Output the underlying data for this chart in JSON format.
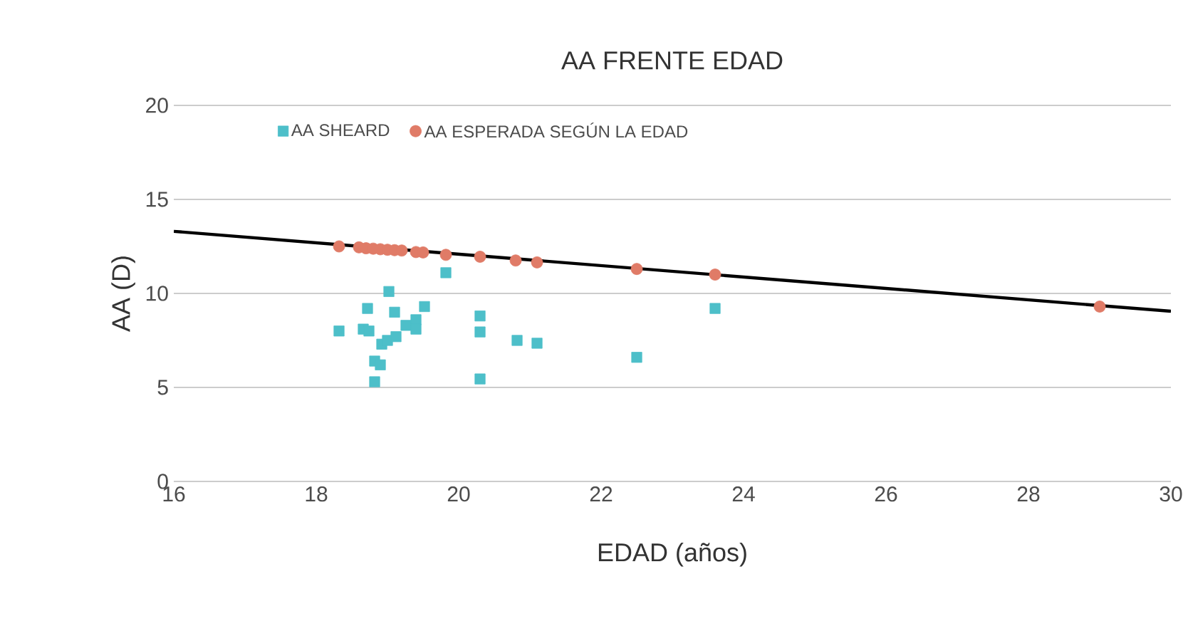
{
  "chart_data": {
    "type": "scatter",
    "title": "AA FRENTE EDAD",
    "xlabel": "EDAD (años)",
    "ylabel": "AA (D)",
    "xlim": [
      16,
      30
    ],
    "xticks": [
      16,
      18,
      20,
      22,
      24,
      26,
      28,
      30
    ],
    "ylim": [
      0,
      20
    ],
    "yticks": [
      0,
      5,
      10,
      15,
      20
    ],
    "grid": "y",
    "legend": "top left",
    "series": [
      {
        "name": "AA SHEARD",
        "color": "#4dbfc9",
        "marker": "square",
        "x": [
          18.32,
          18.66,
          18.72,
          18.74,
          18.82,
          18.82,
          18.9,
          18.92,
          19.02,
          19.0,
          19.1,
          19.12,
          19.26,
          19.4,
          19.4,
          19.52,
          19.82,
          20.3,
          20.3,
          20.3,
          20.82,
          21.1,
          22.5,
          23.6
        ],
        "values": [
          8.0,
          8.1,
          9.2,
          8.0,
          6.4,
          5.3,
          6.2,
          7.3,
          10.1,
          7.5,
          9.0,
          7.7,
          8.3,
          8.6,
          8.1,
          9.3,
          11.1,
          8.8,
          7.95,
          5.45,
          7.5,
          7.35,
          6.6,
          9.2
        ]
      },
      {
        "name": "AA ESPERADA SEGÚN LA EDAD",
        "color": "#e07b67",
        "marker": "circle",
        "x": [
          18.32,
          18.6,
          18.7,
          18.8,
          18.9,
          19.0,
          19.1,
          19.2,
          19.4,
          19.5,
          19.82,
          20.3,
          20.8,
          21.1,
          22.5,
          23.6,
          29.0
        ],
        "values": [
          12.5,
          12.45,
          12.4,
          12.38,
          12.35,
          12.32,
          12.3,
          12.28,
          12.2,
          12.18,
          12.05,
          11.95,
          11.75,
          11.65,
          11.3,
          11.0,
          9.3
        ]
      },
      {
        "type": "line",
        "color": "#000000",
        "marker": "none",
        "x": [
          16,
          30
        ],
        "values": [
          13.3,
          9.05
        ]
      }
    ]
  }
}
